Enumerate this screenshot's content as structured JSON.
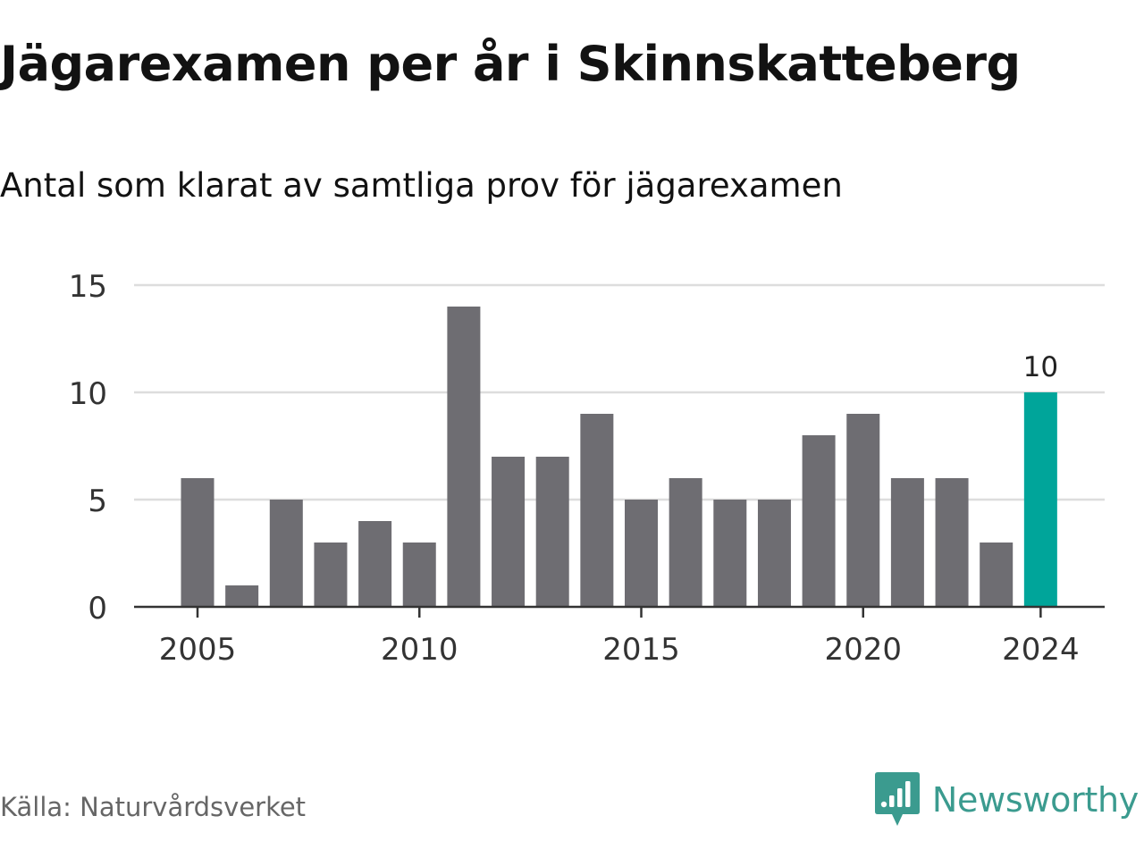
{
  "title": "Jägarexamen per år i Skinnskatteberg",
  "subtitle": "Antal som klarat av samtliga prov för jägarexamen",
  "source": "Källa: Naturvårdsverket",
  "brand": {
    "name": "Newsworthy",
    "icon": "newsworthy-logo-icon",
    "color": "#3b9b8f"
  },
  "colors": {
    "bar": "#6e6d72",
    "highlight": "#00a59a",
    "grid": "#dddddd",
    "axis": "#333333",
    "tick_text": "#333333"
  },
  "chart_data": {
    "type": "bar",
    "x": [
      2005,
      2006,
      2007,
      2008,
      2009,
      2010,
      2011,
      2012,
      2013,
      2014,
      2015,
      2016,
      2017,
      2018,
      2019,
      2020,
      2021,
      2022,
      2023,
      2024
    ],
    "values": [
      6,
      1,
      5,
      3,
      4,
      3,
      14,
      7,
      7,
      9,
      5,
      6,
      5,
      5,
      8,
      9,
      6,
      6,
      3,
      10
    ],
    "highlight_index": 19,
    "data_labels": [
      {
        "index": 19,
        "text": "10"
      }
    ],
    "xticks": [
      2005,
      2010,
      2015,
      2020,
      2024
    ],
    "yticks": [
      0,
      5,
      10,
      15
    ],
    "ylim": [
      0,
      15
    ],
    "grid": true,
    "legend": "none"
  }
}
